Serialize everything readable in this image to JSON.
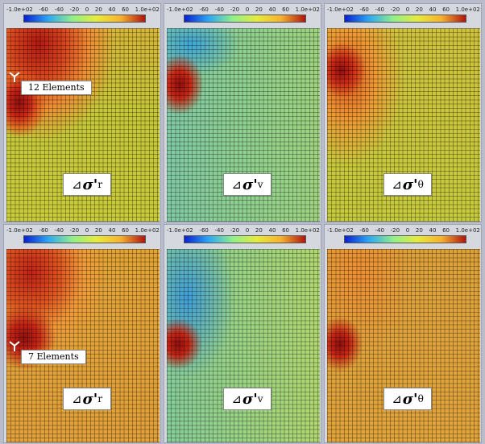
{
  "colorbar": {
    "ticks": [
      "-1.0e+02",
      "-60",
      "-40",
      "-20",
      "0",
      "20",
      "40",
      "60",
      "1.0e+02"
    ],
    "colors": [
      "#0a1fd2",
      "#2aa8f6",
      "#8ff08a",
      "#e6ec3a",
      "#f7b12c",
      "#b0140f"
    ]
  },
  "rows": [
    {
      "elements_label": "12 Elements",
      "panels": [
        {
          "symbol": "⊿",
          "sigma": "σ",
          "prime": "'",
          "sub": "r"
        },
        {
          "symbol": "⊿",
          "sigma": "σ",
          "prime": "'",
          "sub": "v"
        },
        {
          "symbol": "⊿",
          "sigma": "σ",
          "prime": "'",
          "sub": "θ"
        }
      ]
    },
    {
      "elements_label": "7 Elements",
      "panels": [
        {
          "symbol": "⊿",
          "sigma": "σ",
          "prime": "'",
          "sub": "r"
        },
        {
          "symbol": "⊿",
          "sigma": "σ",
          "prime": "'",
          "sub": "v"
        },
        {
          "symbol": "⊿",
          "sigma": "σ",
          "prime": "'",
          "sub": "θ"
        }
      ]
    }
  ]
}
